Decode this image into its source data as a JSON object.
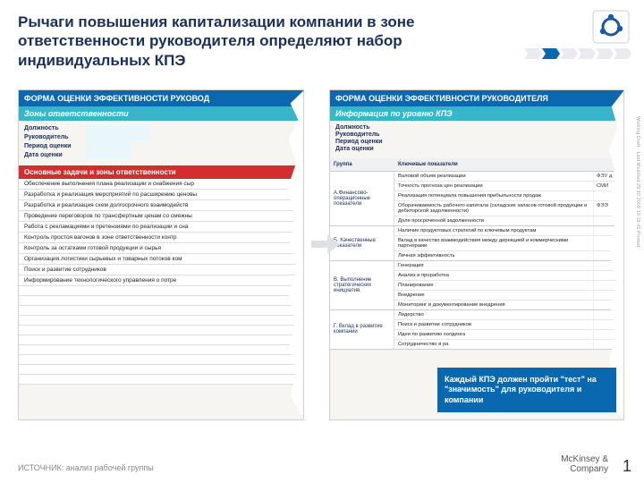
{
  "title": "Рычаги повышения капитализации компании в зоне ответственности руководителя определяют набор индивидуальных КПЭ",
  "source": "ИСТОЧНИК: анализ рабочей группы",
  "brand_line1": "McKinsey &",
  "brand_line2": "Company",
  "page_number": "1",
  "side_text": "Working Draft - Last Modified 29.10.2009 13:19:41   Printed",
  "progress": {
    "total": 6,
    "active_index": 1
  },
  "callout": "Каждый КПЭ должен пройти \"тест\" на \"значимость\" для руководителя и компании",
  "panel_left": {
    "header1": "ФОРМА ОЦЕНКИ ЭФФЕКТИВНОСТИ РУКОВОД",
    "header2": "Зоны ответственности",
    "meta_labels": [
      "Должность",
      "Руководитель",
      "Период оценки",
      "Дата оценки"
    ],
    "section": "Основные задачи и зоны ответственности",
    "rows": [
      "Обеспечение выполнения плана реализации и снабжения сыр",
      "Разработка и реализация мероприятий по расширению ценовы",
      "Разработка и реализация схем долгосрочного взаимодейств",
      "Проведение переговоров по трансфертным ценам со смежны",
      "Работа с рекламациями и претензиями по реализации и сна",
      "Контроль простоя вагонов в зоне ответственности контр",
      "Контроль за остатками готовой продукции и сырья",
      "Организация логистики сырьевых и товарных потоков ком",
      "Поиск и развитие сотрудников",
      "Информирование технологического управления о потре"
    ],
    "empty_rows": 10
  },
  "panel_right": {
    "header1": "ФОРМА ОЦЕНКИ ЭФФЕКТИВНОСТИ РУКОВОДИТЕЛЯ",
    "header2": "Информация по уровню КПЭ",
    "meta_labels": [
      "Должность",
      "Руководитель",
      "Период оценки",
      "Дата оценки"
    ],
    "columns": [
      "Группа",
      "Ключевые показатели",
      ""
    ],
    "groups": [
      {
        "label": "А.Финансово-операционные показатели",
        "items": [
          {
            "t": "Валовой объем реализации",
            "v": "ФЭУ д"
          },
          {
            "t": "Точность прогноза цен реализации",
            "v": "СМИ"
          },
          {
            "t": "Реализация потенциала повышения прибыльности продаж",
            "v": ""
          },
          {
            "t": "Оборачиваемость рабочего капитала (складских запасов готовой продукции и дебиторской задолженности)",
            "v": "ФЭЭ"
          },
          {
            "t": "Доля просроченной задолженности",
            "v": ""
          }
        ]
      },
      {
        "label": "Б. Качественные показатели",
        "items": [
          {
            "t": "Наличие продуктовых стратегий по ключевым продуктам",
            "v": ""
          },
          {
            "t": "Вклад в качество взаимодействия между дирекцией и коммерческими партнерами",
            "v": ""
          },
          {
            "t": "Личная эффективность",
            "v": ""
          }
        ]
      },
      {
        "label": "В. Выполнение стратегических инициатив",
        "items": [
          {
            "t": "Генерация",
            "v": ""
          },
          {
            "t": "Анализ и проработка",
            "v": ""
          },
          {
            "t": "Планирование",
            "v": ""
          },
          {
            "t": "Внедрение",
            "v": ""
          },
          {
            "t": "Мониторинг и документирование внедрения",
            "v": ""
          }
        ]
      },
      {
        "label": "Г. Вклад в развитие компании",
        "items": [
          {
            "t": "Лидерство",
            "v": ""
          },
          {
            "t": "Поиск и развитие сотрудников",
            "v": ""
          },
          {
            "t": "Идеи по развитию холдинга",
            "v": ""
          },
          {
            "t": "Сотрудничество в ра",
            "v": ""
          }
        ]
      }
    ]
  },
  "colors": {
    "title": "#1a2f5a",
    "header_primary": "#0a68b0",
    "header_secondary": "#37b6c9",
    "section_red": "#d12f2f",
    "callout_bg": "#0a68b0"
  }
}
